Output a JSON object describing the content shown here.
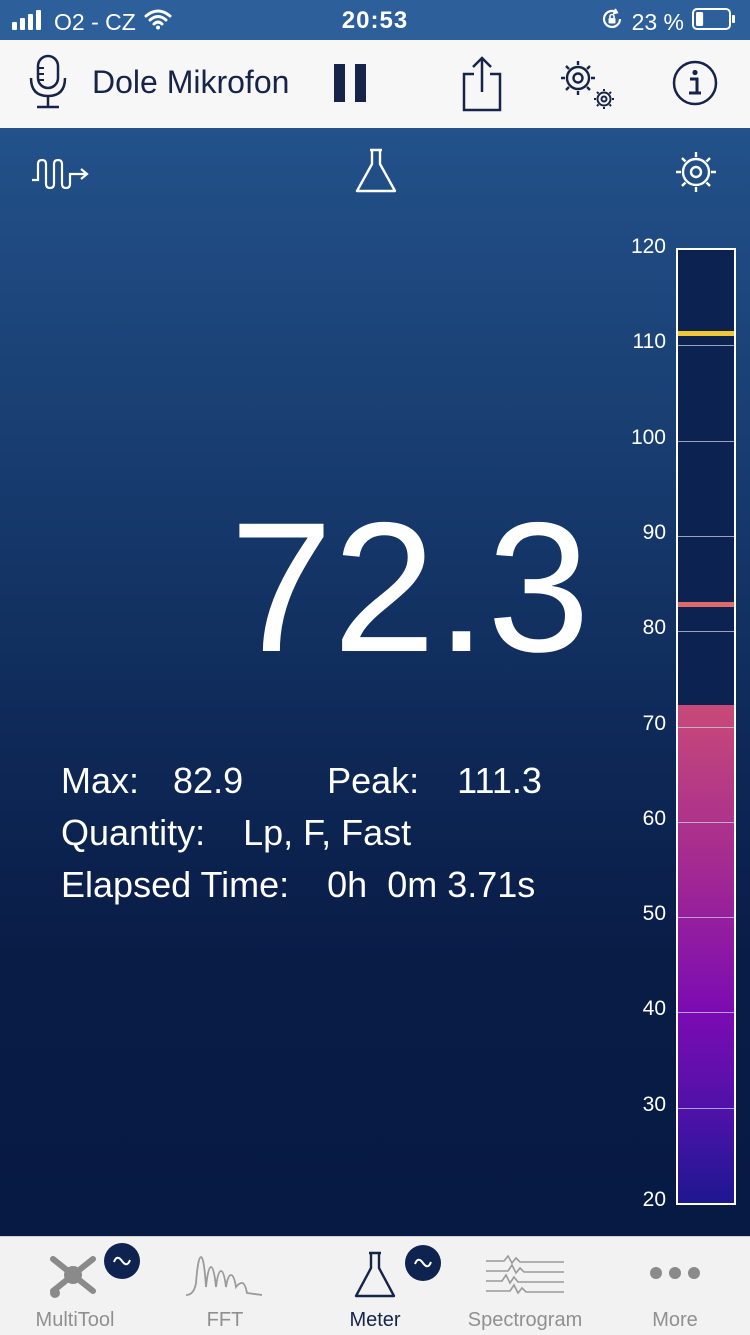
{
  "status_bar": {
    "carrier": "O2 - CZ",
    "time": "20:53",
    "battery_percent": "23 %",
    "battery_level": 0.23
  },
  "toolbar": {
    "title": "Dole Mikrofon"
  },
  "meter": {
    "value": "72.3",
    "max_label": "Max:",
    "max_value": "82.9",
    "peak_label": "Peak:",
    "peak_value": "111.3",
    "quantity_label": "Quantity:",
    "quantity_value": "Lp, F, Fast",
    "elapsed_label": "Elapsed Time:",
    "elapsed_value": "0h  0m 3.71s"
  },
  "level_bar": {
    "scale_labels": [
      "120",
      "110",
      "100",
      "90",
      "80",
      "70",
      "60",
      "50",
      "40",
      "30",
      "20"
    ],
    "scale_min": 20,
    "scale_max": 120,
    "current_level": 72.3,
    "peak_marker": 111.3,
    "max_marker": 82.9,
    "colors": {
      "peak_marker": "#f2c735",
      "max_marker": "#e06a6a"
    }
  },
  "tab_bar": {
    "tabs": [
      {
        "label": "MultiTool",
        "icon": "multitool-icon"
      },
      {
        "label": "FFT",
        "icon": "fft-icon"
      },
      {
        "label": "Meter",
        "icon": "flask-icon"
      },
      {
        "label": "Spectrogram",
        "icon": "spectrogram-icon"
      },
      {
        "label": "More",
        "icon": "more-dots-icon"
      }
    ]
  },
  "colors": {
    "status_bar": "#2d5f9a",
    "toolbar_bg": "#f7f7f7",
    "accent_dark": "#16244a",
    "tab_inactive": "#909090"
  }
}
